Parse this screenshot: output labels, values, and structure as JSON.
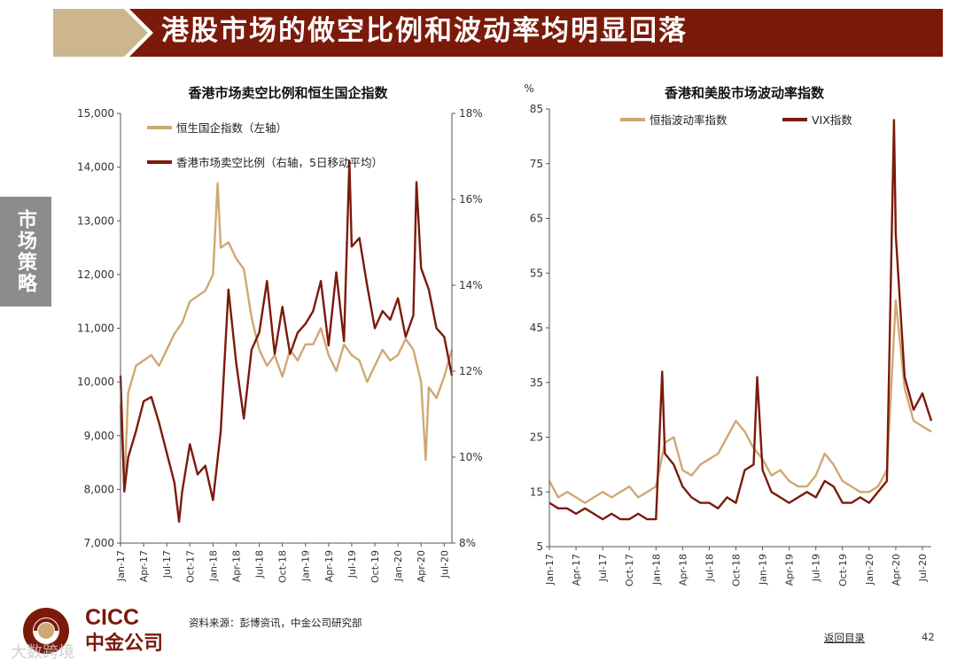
{
  "header": {
    "title": "港股市场的做空比例和波动率均明显回落"
  },
  "side_tab": {
    "label": "市场策略"
  },
  "colors": {
    "dark_red": "#7b1a0a",
    "tan": "#cfa873",
    "banner_left": "#cdb58e"
  },
  "footer": {
    "source": "资料来源：彭博资讯，中金公司研究部",
    "back_link": "返回目录",
    "page_number": "42"
  },
  "logo": {
    "text_en": "CICC",
    "text_cn": "中金公司"
  },
  "watermark": {
    "text": "大数跨境"
  },
  "chart_data": [
    {
      "type": "line",
      "title": "香港市场卖空比例和恒生国企指数",
      "x_ticks": [
        "Jan-17",
        "Apr-17",
        "Jul-17",
        "Oct-17",
        "Jan-18",
        "Apr-18",
        "Jul-18",
        "Oct-18",
        "Jan-19",
        "Apr-19",
        "Jul-19",
        "Oct-19",
        "Jan-20",
        "Apr-20",
        "Jul-20"
      ],
      "x_range": [
        0,
        43
      ],
      "y_left": {
        "ticks": [
          "15,000",
          "14,000",
          "13,000",
          "12,000",
          "11,000",
          "10,000",
          "9,000",
          "8,000",
          "7,000"
        ],
        "min": 7000,
        "max": 15000
      },
      "y_right": {
        "ticks": [
          "18%",
          "16%",
          "14%",
          "12%",
          "10%",
          "8%"
        ],
        "min": 8,
        "max": 18
      },
      "series": [
        {
          "name": "恒生国企指数（左轴）",
          "color": "#cfa873",
          "axis": "left",
          "points": [
            [
              0,
              9600
            ],
            [
              0.5,
              8050
            ],
            [
              1,
              9800
            ],
            [
              2,
              10300
            ],
            [
              3,
              10400
            ],
            [
              4,
              10500
            ],
            [
              5,
              10300
            ],
            [
              6,
              10600
            ],
            [
              7,
              10900
            ],
            [
              8,
              11100
            ],
            [
              9,
              11500
            ],
            [
              10,
              11600
            ],
            [
              11,
              11700
            ],
            [
              12,
              12000
            ],
            [
              12.6,
              13700
            ],
            [
              13,
              12500
            ],
            [
              14,
              12600
            ],
            [
              15,
              12300
            ],
            [
              16,
              12100
            ],
            [
              17,
              11200
            ],
            [
              18,
              10600
            ],
            [
              19,
              10300
            ],
            [
              20,
              10500
            ],
            [
              21,
              10100
            ],
            [
              22,
              10600
            ],
            [
              23,
              10400
            ],
            [
              24,
              10700
            ],
            [
              25,
              10700
            ],
            [
              26,
              11000
            ],
            [
              27,
              10500
            ],
            [
              28,
              10200
            ],
            [
              29,
              10700
            ],
            [
              30,
              10500
            ],
            [
              31,
              10400
            ],
            [
              32,
              10000
            ],
            [
              33,
              10300
            ],
            [
              34,
              10600
            ],
            [
              35,
              10400
            ],
            [
              36,
              10500
            ],
            [
              37,
              10800
            ],
            [
              38,
              10600
            ],
            [
              39,
              10000
            ],
            [
              39.6,
              8550
            ],
            [
              40,
              9900
            ],
            [
              41,
              9700
            ],
            [
              42,
              10100
            ],
            [
              43,
              10600
            ]
          ]
        },
        {
          "name": "香港市场卖空比例（右轴，5日移动平均）",
          "color": "#7b1a0a",
          "axis": "right",
          "points": [
            [
              0,
              11.9
            ],
            [
              0.5,
              9.2
            ],
            [
              1,
              10.0
            ],
            [
              2,
              10.6
            ],
            [
              3,
              11.3
            ],
            [
              4,
              11.4
            ],
            [
              5,
              10.8
            ],
            [
              6,
              10.1
            ],
            [
              7,
              9.4
            ],
            [
              7.6,
              8.5
            ],
            [
              8,
              9.2
            ],
            [
              9,
              10.3
            ],
            [
              10,
              9.6
            ],
            [
              11,
              9.8
            ],
            [
              12,
              9.0
            ],
            [
              13,
              10.6
            ],
            [
              14,
              13.9
            ],
            [
              15,
              12.2
            ],
            [
              16,
              10.9
            ],
            [
              17,
              12.5
            ],
            [
              18,
              12.9
            ],
            [
              19,
              14.1
            ],
            [
              20,
              12.4
            ],
            [
              21,
              13.5
            ],
            [
              22,
              12.4
            ],
            [
              23,
              12.9
            ],
            [
              24,
              13.1
            ],
            [
              25,
              13.4
            ],
            [
              26,
              14.1
            ],
            [
              27,
              12.6
            ],
            [
              28,
              14.3
            ],
            [
              29,
              12.7
            ],
            [
              29.7,
              16.9
            ],
            [
              30,
              14.9
            ],
            [
              31,
              15.1
            ],
            [
              32,
              14.0
            ],
            [
              33,
              13.0
            ],
            [
              34,
              13.4
            ],
            [
              35,
              13.2
            ],
            [
              36,
              13.7
            ],
            [
              37,
              12.8
            ],
            [
              38,
              13.3
            ],
            [
              38.4,
              16.4
            ],
            [
              39,
              14.4
            ],
            [
              40,
              13.9
            ],
            [
              41,
              13.0
            ],
            [
              42,
              12.8
            ],
            [
              43,
              11.9
            ]
          ]
        }
      ]
    },
    {
      "type": "line",
      "title": "香港和美股市场波动率指数",
      "y_unit": "%",
      "x_ticks": [
        "Jan-17",
        "Apr-17",
        "Jul-17",
        "Oct-17",
        "Jan-18",
        "Apr-18",
        "Jul-18",
        "Oct-18",
        "Jan-19",
        "Apr-19",
        "Jul-19",
        "Oct-19",
        "Jan-20",
        "Apr-20",
        "Jul-20"
      ],
      "x_range": [
        0,
        43
      ],
      "y": {
        "ticks": [
          "85",
          "75",
          "65",
          "55",
          "45",
          "35",
          "25",
          "15",
          "5"
        ],
        "min": 5,
        "max": 85
      },
      "series": [
        {
          "name": "恒指波动率指数",
          "color": "#cfa873",
          "points": [
            [
              0,
              17
            ],
            [
              1,
              14
            ],
            [
              2,
              15
            ],
            [
              3,
              14
            ],
            [
              4,
              13
            ],
            [
              5,
              14
            ],
            [
              6,
              15
            ],
            [
              7,
              14
            ],
            [
              8,
              15
            ],
            [
              9,
              16
            ],
            [
              10,
              14
            ],
            [
              11,
              15
            ],
            [
              12,
              16
            ],
            [
              13,
              24
            ],
            [
              14,
              25
            ],
            [
              15,
              19
            ],
            [
              16,
              18
            ],
            [
              17,
              20
            ],
            [
              18,
              21
            ],
            [
              19,
              22
            ],
            [
              20,
              25
            ],
            [
              21,
              28
            ],
            [
              22,
              26
            ],
            [
              23,
              23
            ],
            [
              24,
              21
            ],
            [
              25,
              18
            ],
            [
              26,
              19
            ],
            [
              27,
              17
            ],
            [
              28,
              16
            ],
            [
              29,
              16
            ],
            [
              30,
              18
            ],
            [
              31,
              22
            ],
            [
              32,
              20
            ],
            [
              33,
              17
            ],
            [
              34,
              16
            ],
            [
              35,
              15
            ],
            [
              36,
              15
            ],
            [
              37,
              16
            ],
            [
              38,
              19
            ],
            [
              39,
              50
            ],
            [
              40,
              34
            ],
            [
              41,
              28
            ],
            [
              42,
              27
            ],
            [
              43,
              26
            ]
          ]
        },
        {
          "name": "VIX指数",
          "color": "#7b1a0a",
          "points": [
            [
              0,
              13
            ],
            [
              1,
              12
            ],
            [
              2,
              12
            ],
            [
              3,
              11
            ],
            [
              4,
              12
            ],
            [
              5,
              11
            ],
            [
              6,
              10
            ],
            [
              7,
              11
            ],
            [
              8,
              10
            ],
            [
              9,
              10
            ],
            [
              10,
              11
            ],
            [
              11,
              10
            ],
            [
              12,
              10
            ],
            [
              12.7,
              37
            ],
            [
              13,
              22
            ],
            [
              14,
              20
            ],
            [
              15,
              16
            ],
            [
              16,
              14
            ],
            [
              17,
              13
            ],
            [
              18,
              13
            ],
            [
              19,
              12
            ],
            [
              20,
              14
            ],
            [
              21,
              13
            ],
            [
              22,
              19
            ],
            [
              23,
              20
            ],
            [
              23.4,
              36
            ],
            [
              24,
              19
            ],
            [
              25,
              15
            ],
            [
              26,
              14
            ],
            [
              27,
              13
            ],
            [
              28,
              14
            ],
            [
              29,
              15
            ],
            [
              30,
              14
            ],
            [
              31,
              17
            ],
            [
              32,
              16
            ],
            [
              33,
              13
            ],
            [
              34,
              13
            ],
            [
              35,
              14
            ],
            [
              36,
              13
            ],
            [
              37,
              15
            ],
            [
              38,
              17
            ],
            [
              38.8,
              83
            ],
            [
              39,
              62
            ],
            [
              40,
              36
            ],
            [
              41,
              30
            ],
            [
              42,
              33
            ],
            [
              43,
              28
            ]
          ]
        }
      ]
    }
  ]
}
